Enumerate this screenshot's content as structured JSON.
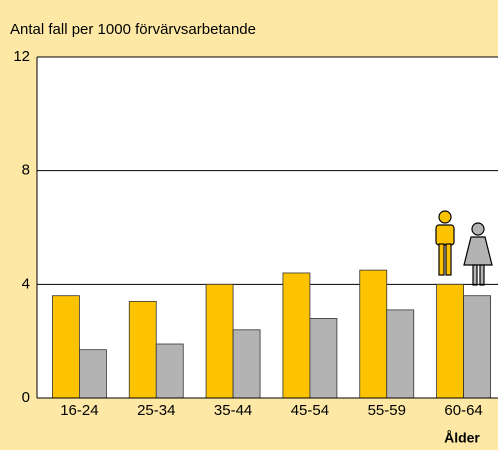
{
  "chart_data": {
    "type": "bar",
    "title": "Antal fall per 1000 förvärvsarbetande",
    "x_label": "Ålder",
    "categories": [
      "16-24",
      "25-34",
      "35-44",
      "45-54",
      "55-59",
      "60-64"
    ],
    "series": [
      {
        "color": "#fdc300",
        "values": [
          3.6,
          3.4,
          4.0,
          4.4,
          4.5,
          4.0
        ]
      },
      {
        "color": "#b3b3b3",
        "values": [
          1.7,
          1.9,
          2.4,
          2.8,
          3.1,
          3.6
        ]
      }
    ],
    "ylim": [
      0,
      12
    ],
    "yticks": [
      0,
      4,
      8,
      12
    ],
    "grid": true
  }
}
